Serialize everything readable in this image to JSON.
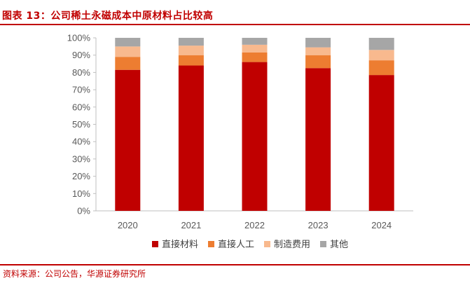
{
  "figure": {
    "title": "图表 13：公司稀土永磁成本中原材料占比较高",
    "source": "资料来源：公司公告，华源证券研究所"
  },
  "colors": {
    "accent": "#c00000",
    "direct_material": "#c00000",
    "direct_labor": "#ed7d31",
    "manufacturing_cost": "#f8b98e",
    "other": "#a6a6a6"
  },
  "chart_data": {
    "type": "bar",
    "stacked": true,
    "categories": [
      "2020",
      "2021",
      "2022",
      "2023",
      "2024"
    ],
    "series": [
      {
        "name": "直接材料",
        "values": [
          81.5,
          84.0,
          86.0,
          82.5,
          78.5
        ],
        "color": "#c00000"
      },
      {
        "name": "直接人工",
        "values": [
          7.5,
          6.0,
          5.5,
          7.5,
          8.5
        ],
        "color": "#ed7d31"
      },
      {
        "name": "制造费用",
        "values": [
          6.0,
          5.5,
          4.5,
          4.5,
          6.0
        ],
        "color": "#f8b98e"
      },
      {
        "name": "其他",
        "values": [
          5.0,
          4.5,
          4.0,
          5.5,
          7.0
        ],
        "color": "#a6a6a6"
      }
    ],
    "yticks": [
      "0%",
      "10%",
      "20%",
      "30%",
      "40%",
      "50%",
      "60%",
      "70%",
      "80%",
      "90%",
      "100%"
    ],
    "ylim": [
      0,
      100
    ],
    "xlabel": "",
    "ylabel": "",
    "grid": false,
    "legend": "bottom"
  }
}
